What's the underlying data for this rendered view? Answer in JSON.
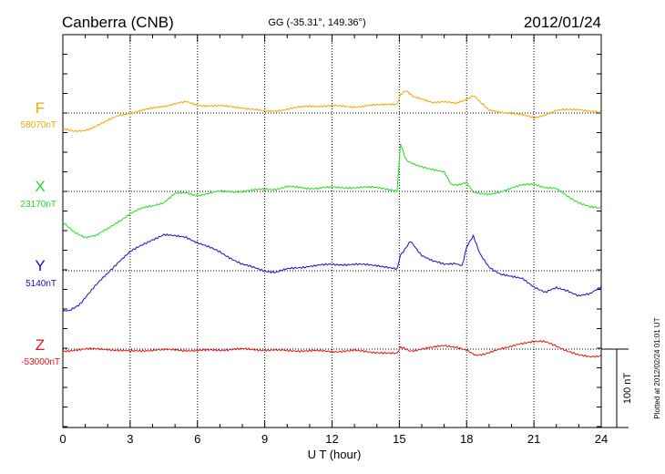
{
  "header": {
    "station": "Canberra (CNB)",
    "coords": "GG (-35.31°, 149.36°)",
    "date": "2012/01/24"
  },
  "footer": {
    "plotted": "Plotted at 2012/02/24 01:01 UT"
  },
  "colors": {
    "F": "#f0a800",
    "X": "#22dd22",
    "Y": "#1010cc",
    "Z": "#ee1010",
    "axis": "#000000",
    "grid": "#000000"
  },
  "chart_data": {
    "type": "line",
    "xlabel": "U T (hour)",
    "xlim": [
      0,
      24
    ],
    "xticks": [
      "0",
      "3",
      "6",
      "9",
      "12",
      "15",
      "18",
      "21",
      "24"
    ],
    "scale_bar": "100 nT",
    "series": [
      {
        "name": "F",
        "baseline": "58070nT",
        "x": [
          0,
          0.5,
          1,
          1.5,
          2,
          2.5,
          3,
          4,
          5,
          5.5,
          6,
          7,
          8,
          9,
          9.5,
          10,
          11,
          12,
          13,
          14,
          14.9,
          15.05,
          15.3,
          15.6,
          16,
          16.5,
          17,
          17.5,
          18,
          18.3,
          18.6,
          19,
          20,
          21,
          21.5,
          22,
          23,
          24
        ],
        "y": [
          -20,
          -24,
          -22,
          -16,
          -10,
          -3,
          0,
          6,
          12,
          14,
          10,
          9,
          7,
          2,
          3,
          5,
          9,
          9,
          8,
          10,
          11,
          24,
          28,
          22,
          18,
          14,
          14,
          12,
          18,
          22,
          14,
          3,
          0,
          -6,
          -2,
          3,
          5,
          0
        ]
      },
      {
        "name": "X",
        "baseline": "23170nT",
        "x": [
          0,
          0.5,
          1,
          1.5,
          2,
          2.5,
          3,
          3.5,
          4,
          4.5,
          5,
          5.5,
          6,
          7,
          8,
          9,
          9.5,
          10,
          11,
          12,
          13,
          14,
          14.9,
          15.05,
          15.3,
          15.6,
          16,
          16.5,
          17,
          17.3,
          17.6,
          18,
          18.3,
          18.6,
          19,
          19.5,
          20,
          20.5,
          21,
          21.5,
          22,
          22.5,
          23,
          23.5,
          24
        ],
        "y": [
          -40,
          -52,
          -58,
          -56,
          -48,
          -38,
          -28,
          -22,
          -18,
          -14,
          -3,
          -2,
          -5,
          0,
          0,
          3,
          3,
          6,
          4,
          5,
          5,
          5,
          1,
          62,
          40,
          36,
          32,
          28,
          24,
          10,
          8,
          12,
          -2,
          -2,
          -4,
          0,
          4,
          8,
          10,
          5,
          3,
          -6,
          -14,
          -20,
          -22
        ]
      },
      {
        "name": "Y",
        "baseline": "5140nT",
        "x": [
          0,
          0.3,
          0.7,
          1,
          1.5,
          2,
          2.5,
          3,
          3.5,
          4,
          4.5,
          5,
          5.5,
          6,
          6.5,
          7,
          8,
          9,
          9.5,
          10,
          11,
          12,
          13,
          14,
          14.9,
          15.05,
          15.3,
          15.5,
          16,
          16.5,
          17,
          17.5,
          17.8,
          18,
          18.3,
          18.6,
          19,
          19.5,
          20,
          20.5,
          21,
          21.5,
          22,
          22.5,
          23,
          23.5,
          24
        ],
        "y": [
          -52,
          -50,
          -44,
          -34,
          -18,
          -3,
          12,
          24,
          32,
          40,
          46,
          44,
          43,
          36,
          30,
          24,
          8,
          0,
          -2,
          2,
          6,
          8,
          8,
          7,
          3,
          20,
          30,
          38,
          20,
          12,
          8,
          10,
          6,
          30,
          44,
          22,
          5,
          -4,
          -8,
          -10,
          -20,
          -28,
          -22,
          -25,
          -32,
          -30,
          -20
        ]
      },
      {
        "name": "Z",
        "baseline": "-53000nT",
        "x": [
          0,
          0.5,
          1,
          2,
          3,
          4,
          5,
          6,
          7,
          8,
          9,
          10,
          11,
          12,
          13,
          14,
          14.9,
          15.05,
          15.5,
          16,
          16.5,
          17,
          17.5,
          18,
          18.4,
          18.8,
          19.3,
          19.8,
          20.3,
          21,
          21.5,
          22,
          22.5,
          23,
          23.5,
          24
        ],
        "y": [
          -3,
          -1,
          0,
          0,
          -3,
          -1,
          -1,
          -2,
          -1,
          0,
          -1,
          -2,
          -2,
          -3,
          -2,
          -4,
          -5,
          2,
          -2,
          0,
          2,
          5,
          3,
          -2,
          -8,
          -6,
          -2,
          2,
          7,
          10,
          9,
          4,
          -2,
          -8,
          -10,
          -8
        ]
      }
    ]
  }
}
